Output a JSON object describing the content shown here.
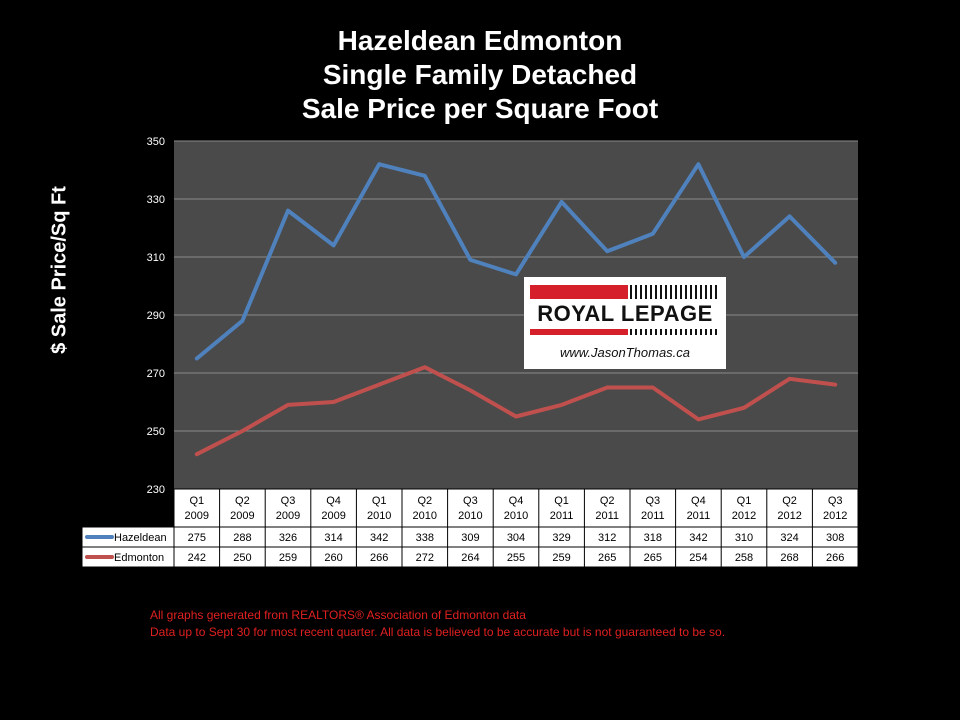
{
  "title_lines": [
    "Hazeldean Edmonton",
    "Single Family Detached",
    "Sale Price per Square Foot"
  ],
  "logo": {
    "brand": "ROYAL LEPAGE",
    "url": "www.JasonThomas.ca"
  },
  "footnotes": [
    "All graphs generated from REALTORS® Association of Edmonton data",
    "Data up to Sept 30 for most recent quarter. All data is believed to be accurate but is not guaranteed to be so."
  ],
  "colors": {
    "background": "#000000",
    "plot_area": "#4a4a4a",
    "hazeldean": "#4f81bd",
    "edmonton": "#c0504d",
    "footnote": "#e02020"
  },
  "chart_data": {
    "type": "line",
    "title": "Hazeldean Edmonton Single Family Detached Sale Price per Square Foot",
    "ylabel": "$ Sale Price/Sq Ft",
    "xlabel": "",
    "ylim": [
      230,
      350
    ],
    "yticks": [
      230,
      250,
      270,
      290,
      310,
      330,
      350
    ],
    "grid": true,
    "categories": [
      [
        "Q1",
        "2009"
      ],
      [
        "Q2",
        "2009"
      ],
      [
        "Q3",
        "2009"
      ],
      [
        "Q4",
        "2009"
      ],
      [
        "Q1",
        "2010"
      ],
      [
        "Q2",
        "2010"
      ],
      [
        "Q3",
        "2010"
      ],
      [
        "Q4",
        "2010"
      ],
      [
        "Q1",
        "2011"
      ],
      [
        "Q2",
        "2011"
      ],
      [
        "Q3",
        "2011"
      ],
      [
        "Q4",
        "2011"
      ],
      [
        "Q1",
        "2012"
      ],
      [
        "Q2",
        "2012"
      ],
      [
        "Q3",
        "2012"
      ]
    ],
    "series": [
      {
        "name": "Hazeldean",
        "color": "#4f81bd",
        "values": [
          275,
          288,
          326,
          314,
          342,
          338,
          309,
          304,
          329,
          312,
          318,
          342,
          310,
          324,
          308
        ]
      },
      {
        "name": "Edmonton",
        "color": "#c0504d",
        "values": [
          242,
          250,
          259,
          260,
          266,
          272,
          264,
          255,
          259,
          265,
          265,
          254,
          258,
          268,
          266
        ]
      }
    ],
    "legend": "data-table"
  }
}
